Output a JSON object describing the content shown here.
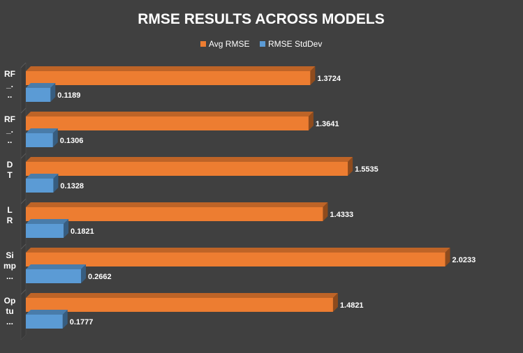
{
  "chart_data": {
    "type": "bar",
    "orientation": "horizontal",
    "style": "3d",
    "title": "RMSE RESULTS ACROSS MODELS",
    "legend_position": "top",
    "grid": false,
    "xlim": [
      0,
      2.2
    ],
    "categories": [
      "RF_...",
      "RF_...",
      "DT",
      "LR",
      "Simp...",
      "Optu..."
    ],
    "series": [
      {
        "name": "Avg RMSE",
        "color": "#ED7D31",
        "values": [
          1.3724,
          1.3641,
          1.5535,
          1.4333,
          2.0233,
          1.4821
        ]
      },
      {
        "name": "RMSE StdDev",
        "color": "#5B9BD5",
        "values": [
          0.1189,
          0.1306,
          0.1328,
          0.1821,
          0.2662,
          0.1777
        ]
      }
    ]
  }
}
